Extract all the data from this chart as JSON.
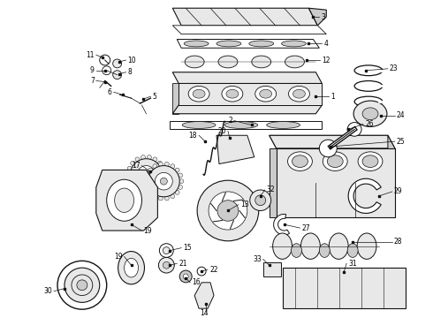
{
  "bg_color": "#ffffff",
  "fig_width": 4.9,
  "fig_height": 3.6,
  "dpi": 100,
  "label_fontsize": 5.5,
  "line_color": "#111111",
  "fill_light": "#e8e8e8",
  "fill_mid": "#cccccc",
  "fill_dark": "#aaaaaa"
}
